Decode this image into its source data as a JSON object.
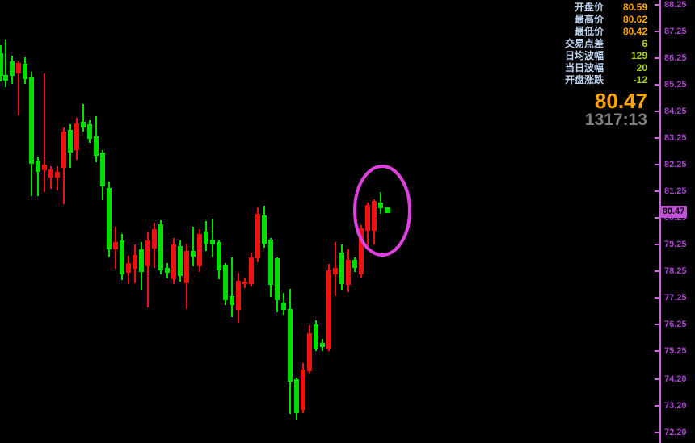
{
  "colors": {
    "background": "#000000",
    "up_candle_red": "#ee1111",
    "down_candle_green": "#00dd00",
    "axis_line": "#cc66dd",
    "tick_label": "#aa44cc",
    "badge_bg": "#c050d8",
    "badge_text": "#000000",
    "highlight_ellipse": "#e040e0",
    "info_label_blue": "#bdd2ec",
    "value_orange": "#ffa500",
    "value_green": "#aad400",
    "time_gray": "#808080"
  },
  "info_panel": {
    "rows": [
      {
        "label": "开盘价",
        "value": "80.59",
        "color": "orange"
      },
      {
        "label": "最高价",
        "value": "80.62",
        "color": "orange"
      },
      {
        "label": "最低价",
        "value": "80.42",
        "color": "orange"
      },
      {
        "label": "交易点差",
        "value": "6",
        "color": "green"
      },
      {
        "label": "日均波幅",
        "value": "129",
        "color": "green"
      },
      {
        "label": "当日波幅",
        "value": "20",
        "color": "green"
      },
      {
        "label": "开盘涨跌",
        "value": "-12",
        "color": "green"
      }
    ],
    "current_price": "80.47",
    "session_time": "1317:13"
  },
  "axis": {
    "last_price": 80.47,
    "last_price_label": "80.47",
    "ticks": [
      {
        "label": "88.25",
        "price": 88.25
      },
      {
        "label": "87.25",
        "price": 87.25
      },
      {
        "label": "86.25",
        "price": 86.25
      },
      {
        "label": "85.25",
        "price": 85.25
      },
      {
        "label": "84.25",
        "price": 84.25
      },
      {
        "label": "83.25",
        "price": 83.25
      },
      {
        "label": "82.25",
        "price": 82.25
      },
      {
        "label": "81.25",
        "price": 81.25
      },
      {
        "label": "80.25",
        "price": 80.25
      },
      {
        "label": "79.25",
        "price": 79.25
      },
      {
        "label": "78.25",
        "price": 78.25
      },
      {
        "label": "77.25",
        "price": 77.25
      },
      {
        "label": "76.25",
        "price": 76.25
      },
      {
        "label": "75.25",
        "price": 75.25
      },
      {
        "label": "74.20",
        "price": 74.2
      },
      {
        "label": "73.20",
        "price": 73.2
      },
      {
        "label": "72.20",
        "price": 72.2
      }
    ]
  },
  "chart_data": {
    "type": "candlestick",
    "title": "",
    "color_convention": "red = up, green = down (Chinese market convention)",
    "ylim": [
      72.0,
      88.5
    ],
    "legend": "none",
    "grid": false,
    "current_tick_marker": {
      "x": 479,
      "price": 80.55,
      "size": 7,
      "dir": "down"
    },
    "annotation": {
      "type": "ellipse-highlight",
      "around": "latest candles"
    },
    "candles": [
      {
        "x": 1,
        "dir": "down",
        "o": 86.43,
        "h": 86.74,
        "l": 85.38,
        "c": 85.59
      },
      {
        "x": 7,
        "dir": "down",
        "o": 85.62,
        "h": 86.95,
        "l": 85.16,
        "c": 85.41
      },
      {
        "x": 15,
        "dir": "down",
        "o": 86.13,
        "h": 86.34,
        "l": 85.29,
        "c": 85.59
      },
      {
        "x": 23,
        "dir": "up",
        "o": 85.68,
        "h": 86.13,
        "l": 84.11,
        "c": 86.07
      },
      {
        "x": 31,
        "dir": "down",
        "o": 86.04,
        "h": 86.28,
        "l": 85.29,
        "c": 85.47
      },
      {
        "x": 39,
        "dir": "down",
        "o": 85.53,
        "h": 85.74,
        "l": 81.08,
        "c": 82.29
      },
      {
        "x": 47,
        "dir": "down",
        "o": 82.41,
        "h": 82.56,
        "l": 81.08,
        "c": 81.99
      },
      {
        "x": 55,
        "dir": "up",
        "o": 82.05,
        "h": 85.68,
        "l": 81.23,
        "c": 82.26
      },
      {
        "x": 63,
        "dir": "up",
        "o": 81.78,
        "h": 82.2,
        "l": 81.35,
        "c": 82.08
      },
      {
        "x": 71,
        "dir": "up",
        "o": 81.75,
        "h": 82.2,
        "l": 81.29,
        "c": 81.99
      },
      {
        "x": 79,
        "dir": "up",
        "o": 82.14,
        "h": 83.65,
        "l": 80.78,
        "c": 83.5
      },
      {
        "x": 87,
        "dir": "down",
        "o": 83.56,
        "h": 83.77,
        "l": 82.14,
        "c": 82.71
      },
      {
        "x": 95,
        "dir": "up",
        "o": 82.81,
        "h": 84.02,
        "l": 82.44,
        "c": 83.8
      },
      {
        "x": 103,
        "dir": "down",
        "o": 83.86,
        "h": 84.53,
        "l": 83.5,
        "c": 83.65
      },
      {
        "x": 111,
        "dir": "down",
        "o": 83.77,
        "h": 83.92,
        "l": 83.08,
        "c": 83.23
      },
      {
        "x": 119,
        "dir": "down",
        "o": 83.32,
        "h": 84.08,
        "l": 82.35,
        "c": 82.59
      },
      {
        "x": 127,
        "dir": "down",
        "o": 82.71,
        "h": 82.81,
        "l": 80.93,
        "c": 81.44
      },
      {
        "x": 135,
        "dir": "down",
        "o": 81.38,
        "h": 81.6,
        "l": 78.81,
        "c": 79.08
      },
      {
        "x": 143,
        "dir": "up",
        "o": 79.08,
        "h": 79.93,
        "l": 78.33,
        "c": 79.33
      },
      {
        "x": 151,
        "dir": "down",
        "o": 79.39,
        "h": 79.63,
        "l": 77.93,
        "c": 78.12
      },
      {
        "x": 159,
        "dir": "up",
        "o": 78.18,
        "h": 78.84,
        "l": 77.75,
        "c": 78.54
      },
      {
        "x": 167,
        "dir": "up",
        "o": 78.33,
        "h": 79.24,
        "l": 77.81,
        "c": 78.87
      },
      {
        "x": 175,
        "dir": "down",
        "o": 79.08,
        "h": 79.33,
        "l": 77.51,
        "c": 78.21
      },
      {
        "x": 183,
        "dir": "up",
        "o": 78.42,
        "h": 79.69,
        "l": 76.9,
        "c": 79.39
      },
      {
        "x": 191,
        "dir": "up",
        "o": 79.11,
        "h": 80.08,
        "l": 78.36,
        "c": 79.84
      },
      {
        "x": 199,
        "dir": "down",
        "o": 80.02,
        "h": 80.17,
        "l": 78.12,
        "c": 78.27
      },
      {
        "x": 207,
        "dir": "down",
        "o": 78.36,
        "h": 78.54,
        "l": 77.99,
        "c": 78.18
      },
      {
        "x": 215,
        "dir": "up",
        "o": 77.96,
        "h": 79.48,
        "l": 77.75,
        "c": 79.24
      },
      {
        "x": 223,
        "dir": "down",
        "o": 79.18,
        "h": 79.39,
        "l": 77.87,
        "c": 78.06
      },
      {
        "x": 231,
        "dir": "up",
        "o": 77.81,
        "h": 79.27,
        "l": 76.84,
        "c": 79.02
      },
      {
        "x": 239,
        "dir": "down",
        "o": 79.02,
        "h": 79.93,
        "l": 78.42,
        "c": 78.81
      },
      {
        "x": 247,
        "dir": "up",
        "o": 78.42,
        "h": 79.84,
        "l": 78.21,
        "c": 79.63
      },
      {
        "x": 255,
        "dir": "down",
        "o": 79.72,
        "h": 80.14,
        "l": 79.02,
        "c": 79.27
      },
      {
        "x": 263,
        "dir": "down",
        "o": 79.42,
        "h": 80.23,
        "l": 78.81,
        "c": 79.24
      },
      {
        "x": 271,
        "dir": "down",
        "o": 79.33,
        "h": 79.42,
        "l": 77.96,
        "c": 78.27
      },
      {
        "x": 279,
        "dir": "down",
        "o": 78.48,
        "h": 78.54,
        "l": 76.97,
        "c": 77.15
      },
      {
        "x": 287,
        "dir": "down",
        "o": 77.3,
        "h": 78.78,
        "l": 76.51,
        "c": 76.97
      },
      {
        "x": 295,
        "dir": "up",
        "o": 76.81,
        "h": 78.18,
        "l": 76.3,
        "c": 77.9
      },
      {
        "x": 303,
        "dir": "up",
        "o": 77.75,
        "h": 78.02,
        "l": 77.6,
        "c": 77.87
      },
      {
        "x": 311,
        "dir": "up",
        "o": 77.75,
        "h": 78.96,
        "l": 77.66,
        "c": 78.78
      },
      {
        "x": 319,
        "dir": "up",
        "o": 78.72,
        "h": 80.63,
        "l": 78.57,
        "c": 80.39
      },
      {
        "x": 327,
        "dir": "down",
        "o": 80.33,
        "h": 80.69,
        "l": 79.14,
        "c": 79.27
      },
      {
        "x": 335,
        "dir": "down",
        "o": 79.42,
        "h": 79.48,
        "l": 77.27,
        "c": 77.72
      },
      {
        "x": 343,
        "dir": "down",
        "o": 78.72,
        "h": 78.78,
        "l": 76.69,
        "c": 77.15
      },
      {
        "x": 351,
        "dir": "down",
        "o": 77.06,
        "h": 77.42,
        "l": 76.6,
        "c": 76.81
      },
      {
        "x": 359,
        "dir": "down",
        "o": 76.84,
        "h": 77.57,
        "l": 72.88,
        "c": 74.09
      },
      {
        "x": 367,
        "dir": "down",
        "o": 74.18,
        "h": 74.24,
        "l": 72.67,
        "c": 72.91
      },
      {
        "x": 375,
        "dir": "up",
        "o": 73.03,
        "h": 74.79,
        "l": 72.91,
        "c": 74.54
      },
      {
        "x": 383,
        "dir": "up",
        "o": 74.48,
        "h": 76.21,
        "l": 74.39,
        "c": 75.91
      },
      {
        "x": 391,
        "dir": "down",
        "o": 76.24,
        "h": 76.39,
        "l": 75.24,
        "c": 75.33
      },
      {
        "x": 399,
        "dir": "down",
        "o": 75.54,
        "h": 75.69,
        "l": 75.24,
        "c": 75.39
      },
      {
        "x": 407,
        "dir": "up",
        "o": 75.33,
        "h": 78.51,
        "l": 75.24,
        "c": 78.27
      },
      {
        "x": 415,
        "dir": "up",
        "o": 78.12,
        "h": 79.33,
        "l": 77.3,
        "c": 78.36
      },
      {
        "x": 423,
        "dir": "down",
        "o": 78.96,
        "h": 79.24,
        "l": 77.51,
        "c": 77.75
      },
      {
        "x": 431,
        "dir": "up",
        "o": 77.72,
        "h": 79.08,
        "l": 77.45,
        "c": 78.66
      },
      {
        "x": 439,
        "dir": "down",
        "o": 78.66,
        "h": 78.78,
        "l": 78.21,
        "c": 78.36
      },
      {
        "x": 447,
        "dir": "up",
        "o": 78.12,
        "h": 79.99,
        "l": 78.02,
        "c": 79.87
      },
      {
        "x": 455,
        "dir": "up",
        "o": 79.78,
        "h": 80.84,
        "l": 79.18,
        "c": 80.75
      },
      {
        "x": 463,
        "dir": "up",
        "o": 79.78,
        "h": 80.96,
        "l": 79.24,
        "c": 80.9
      },
      {
        "x": 471,
        "dir": "down",
        "o": 80.84,
        "h": 81.23,
        "l": 80.39,
        "c": 80.6
      }
    ]
  }
}
